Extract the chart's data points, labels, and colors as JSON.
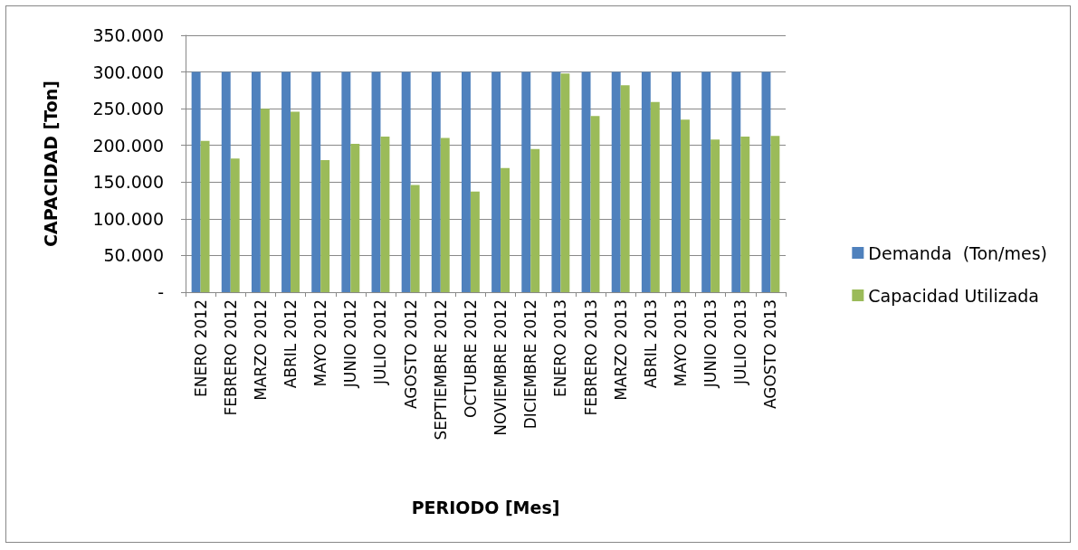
{
  "chart_data": {
    "type": "bar",
    "xlabel": "PERIODO [Mes]",
    "ylabel": "CAPACIDAD [Ton]",
    "categories": [
      "ENERO 2012",
      "FEBRERO 2012",
      "MARZO 2012",
      "ABRIL 2012",
      "MAYO 2012",
      "JUNIO 2012",
      "JULIO 2012",
      "AGOSTO 2012",
      "SEPTIEMBRE 2012",
      "OCTUBRE 2012",
      "NOVIEMBRE 2012",
      "DICIEMBRE 2012",
      "ENERO 2013",
      "FEBRERO 2013",
      "MARZO 2013",
      "ABRIL 2013",
      "MAYO 2013",
      "JUNIO 2013",
      "JULIO 2013",
      "AGOSTO 2013"
    ],
    "series": [
      {
        "name": "Demanda  (Ton/mes)",
        "color": "#4f81bd",
        "values": [
          300000,
          300000,
          300000,
          300000,
          300000,
          300000,
          300000,
          300000,
          300000,
          300000,
          300000,
          300000,
          300000,
          300000,
          300000,
          300000,
          300000,
          300000,
          300000,
          300000
        ]
      },
      {
        "name": "Capacidad Utilizada",
        "color": "#9bbb59",
        "values": [
          206000,
          182000,
          250000,
          246000,
          180000,
          202000,
          212000,
          146000,
          210000,
          137000,
          169000,
          195000,
          298000,
          240000,
          282000,
          259000,
          235000,
          208000,
          212000,
          213000
        ]
      }
    ],
    "ylim": [
      0,
      350000
    ],
    "yticks": [
      {
        "value": 0,
        "label": "-"
      },
      {
        "value": 50000,
        "label": "50.000"
      },
      {
        "value": 100000,
        "label": "100.000"
      },
      {
        "value": 150000,
        "label": "150.000"
      },
      {
        "value": 200000,
        "label": "200.000"
      },
      {
        "value": 250000,
        "label": "250.000"
      },
      {
        "value": 300000,
        "label": "300.000"
      },
      {
        "value": 350000,
        "label": "350.000"
      }
    ],
    "grid": "y",
    "legend": "right"
  }
}
